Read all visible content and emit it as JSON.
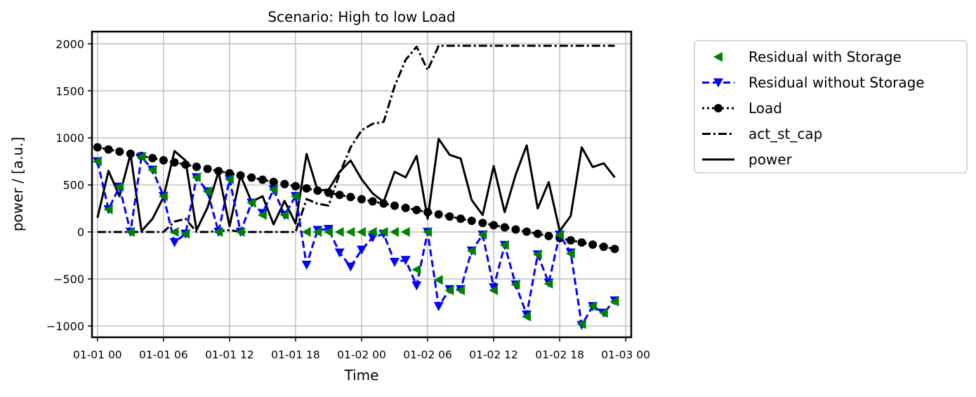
{
  "chart_data": {
    "type": "line",
    "title": "Scenario: High to low Load",
    "xlabel": "Time",
    "ylabel": "power / [a.u.]",
    "x_tick_labels": [
      "01-01 00",
      "01-01 06",
      "01-01 12",
      "01-01 18",
      "01-02 00",
      "01-02 06",
      "01-02 12",
      "01-02 18",
      "01-03 00"
    ],
    "xlim": [
      -0.5,
      48.5
    ],
    "ylim": [
      -1120,
      2130
    ],
    "y_ticks": [
      -1000,
      -500,
      0,
      500,
      1000,
      1500,
      2000
    ],
    "y_tick_labels": [
      "−1000",
      "−500",
      "0",
      "500",
      "1000",
      "1500",
      "2000"
    ],
    "x_hours": [
      0,
      1,
      2,
      3,
      4,
      5,
      6,
      7,
      8,
      9,
      10,
      11,
      12,
      13,
      14,
      15,
      16,
      17,
      18,
      19,
      20,
      21,
      22,
      23,
      24,
      25,
      26,
      27,
      28,
      29,
      30,
      31,
      32,
      33,
      34,
      35,
      36,
      37,
      38,
      39,
      40,
      41,
      42,
      43,
      44,
      45,
      46,
      47
    ],
    "grid": true,
    "legend_position": "outside-right",
    "series": [
      {
        "name": "Residual with Storage",
        "color": "#008000",
        "style": "markers-triangle-left",
        "values": [
          750,
          240,
          480,
          0,
          800,
          660,
          380,
          0,
          -20,
          580,
          430,
          0,
          560,
          0,
          310,
          180,
          450,
          180,
          380,
          0,
          0,
          0,
          0,
          0,
          0,
          0,
          0,
          0,
          0,
          -400,
          0,
          -510,
          -620,
          -620,
          -200,
          -30,
          -620,
          -140,
          -560,
          -900,
          -240,
          -550,
          -30,
          -230,
          -980,
          -790,
          -860,
          -740
        ]
      },
      {
        "name": "Residual without Storage",
        "color": "#0000ff",
        "style": "dashed-triangle-down",
        "values": [
          750,
          240,
          480,
          0,
          800,
          660,
          380,
          -110,
          -20,
          580,
          430,
          0,
          560,
          0,
          310,
          200,
          450,
          180,
          380,
          -350,
          20,
          30,
          -220,
          -370,
          -190,
          -60,
          -20,
          -320,
          -300,
          -570,
          0,
          -790,
          -610,
          -610,
          -200,
          -30,
          -590,
          -140,
          -560,
          -880,
          -240,
          -540,
          -30,
          -220,
          -990,
          -790,
          -860,
          -730
        ]
      },
      {
        "name": "Load",
        "color": "#000000",
        "style": "dotted-circle",
        "values": [
          900,
          877,
          854,
          831,
          808,
          785,
          762,
          739,
          716,
          693,
          670,
          647,
          624,
          601,
          578,
          555,
          532,
          509,
          486,
          463,
          440,
          417,
          394,
          371,
          348,
          325,
          302,
          279,
          256,
          233,
          210,
          187,
          164,
          141,
          118,
          95,
          72,
          49,
          26,
          3,
          -20,
          -43,
          -66,
          -89,
          -112,
          -135,
          -158,
          -181
        ]
      },
      {
        "name": "act_st_cap",
        "color": "#000000",
        "style": "dashdot",
        "values": [
          0,
          0,
          0,
          0,
          0,
          0,
          0,
          110,
          140,
          0,
          0,
          10,
          20,
          0,
          0,
          0,
          0,
          0,
          0,
          350,
          300,
          280,
          620,
          900,
          1080,
          1150,
          1170,
          1550,
          1830,
          1970,
          1720,
          1980,
          1980,
          1980,
          1980,
          1980,
          1980,
          1980,
          1980,
          1980,
          1980,
          1980,
          1980,
          1980,
          1980,
          1980,
          1980,
          1980
        ]
      },
      {
        "name": "power",
        "color": "#000000",
        "style": "solid",
        "values": [
          150,
          650,
          380,
          830,
          10,
          140,
          370,
          860,
          760,
          20,
          260,
          640,
          60,
          600,
          320,
          380,
          80,
          330,
          90,
          830,
          440,
          450,
          640,
          760,
          560,
          410,
          320,
          640,
          580,
          810,
          140,
          990,
          820,
          780,
          340,
          180,
          700,
          210,
          610,
          920,
          250,
          530,
          10,
          170,
          900,
          690,
          730,
          580
        ]
      }
    ]
  }
}
